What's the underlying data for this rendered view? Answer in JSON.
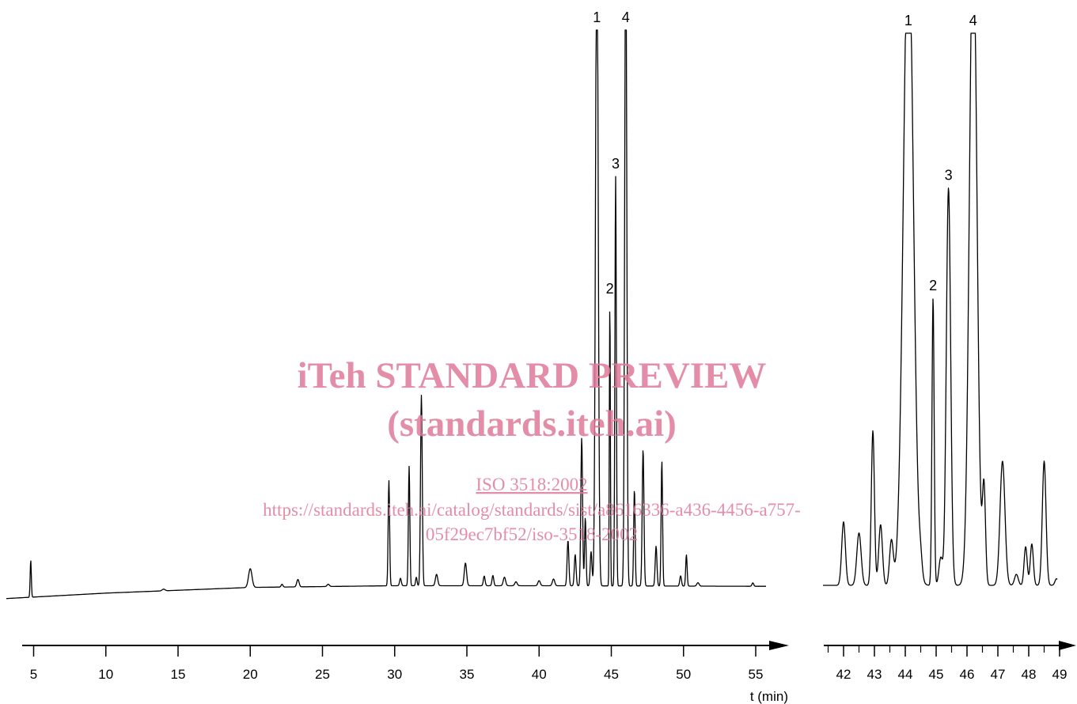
{
  "chart_data": [
    {
      "type": "line",
      "panel": "full-chromatogram",
      "xlabel": "t (min)",
      "ylabel": "",
      "xlim": [
        2.8,
        55.5
      ],
      "xticks": [
        5,
        10,
        15,
        20,
        25,
        30,
        35,
        40,
        45,
        50,
        55
      ],
      "baseline": {
        "x": [
          2.8,
          10,
          20,
          30,
          40,
          55
        ],
        "y": [
          0,
          1.0,
          2.0,
          2.3,
          2.3,
          2.2
        ]
      },
      "peaks": [
        {
          "t": 4.8,
          "h": 6.5,
          "w": 0.04
        },
        {
          "t": 14.0,
          "h": 0.3,
          "w": 0.1
        },
        {
          "t": 20.0,
          "h": 3.3,
          "w": 0.12
        },
        {
          "t": 22.2,
          "h": 0.5,
          "w": 0.06
        },
        {
          "t": 23.3,
          "h": 1.3,
          "w": 0.08
        },
        {
          "t": 25.4,
          "h": 0.4,
          "w": 0.08
        },
        {
          "t": 29.6,
          "h": 18.5,
          "w": 0.05
        },
        {
          "t": 30.4,
          "h": 1.3,
          "w": 0.06
        },
        {
          "t": 31.0,
          "h": 21.0,
          "w": 0.05
        },
        {
          "t": 31.5,
          "h": 1.5,
          "w": 0.05
        },
        {
          "t": 31.85,
          "h": 33.5,
          "w": 0.06
        },
        {
          "t": 32.9,
          "h": 2.0,
          "w": 0.08
        },
        {
          "t": 34.9,
          "h": 4.0,
          "w": 0.08
        },
        {
          "t": 36.2,
          "h": 1.7,
          "w": 0.06
        },
        {
          "t": 36.8,
          "h": 1.8,
          "w": 0.06
        },
        {
          "t": 37.6,
          "h": 1.5,
          "w": 0.08
        },
        {
          "t": 38.4,
          "h": 0.7,
          "w": 0.08
        },
        {
          "t": 40.0,
          "h": 0.9,
          "w": 0.08
        },
        {
          "t": 41.0,
          "h": 1.2,
          "w": 0.08
        },
        {
          "t": 42.0,
          "h": 8.0,
          "w": 0.06
        },
        {
          "t": 42.5,
          "h": 5.5,
          "w": 0.06
        },
        {
          "t": 42.95,
          "h": 26.0,
          "w": 0.06
        },
        {
          "t": 43.2,
          "h": 12.0,
          "w": 0.05
        },
        {
          "t": 43.6,
          "h": 6.0,
          "w": 0.06
        },
        {
          "t": 44.0,
          "h": 120.0,
          "w": 0.09,
          "label": "1"
        },
        {
          "t": 44.9,
          "h": 50.0,
          "w": 0.035,
          "label": "2"
        },
        {
          "t": 45.3,
          "h": 72.0,
          "w": 0.05,
          "label": "3"
        },
        {
          "t": 46.0,
          "h": 120.0,
          "w": 0.07,
          "label": "4"
        },
        {
          "t": 46.6,
          "h": 17.0,
          "w": 0.05
        },
        {
          "t": 47.2,
          "h": 24.0,
          "w": 0.06
        },
        {
          "t": 48.1,
          "h": 7.0,
          "w": 0.06
        },
        {
          "t": 48.5,
          "h": 22.0,
          "w": 0.05
        },
        {
          "t": 49.8,
          "h": 1.8,
          "w": 0.06
        },
        {
          "t": 50.2,
          "h": 5.5,
          "w": 0.05
        },
        {
          "t": 51.0,
          "h": 0.6,
          "w": 0.08
        },
        {
          "t": 54.8,
          "h": 0.6,
          "w": 0.06
        }
      ]
    },
    {
      "type": "line",
      "panel": "expanded-view",
      "xlabel": "",
      "ylabel": "",
      "xlim": [
        41.5,
        49.4
      ],
      "xticks": [
        42,
        43,
        44,
        45,
        46,
        47,
        48,
        49
      ],
      "baseline": {
        "x": [
          41.5,
          49.4
        ],
        "y": [
          0,
          0
        ]
      },
      "peaks": [
        {
          "t": 42.0,
          "h": 11.5,
          "w": 0.06
        },
        {
          "t": 42.5,
          "h": 9.5,
          "w": 0.07
        },
        {
          "t": 42.95,
          "h": 28.0,
          "w": 0.05
        },
        {
          "t": 43.2,
          "h": 11.0,
          "w": 0.06
        },
        {
          "t": 43.55,
          "h": 8.0,
          "w": 0.06
        },
        {
          "t": 44.1,
          "h": 120.0,
          "w": 0.16,
          "label": "1"
        },
        {
          "t": 44.5,
          "h": 2.5,
          "w": 0.05
        },
        {
          "t": 44.9,
          "h": 52.0,
          "w": 0.035,
          "label": "2"
        },
        {
          "t": 45.15,
          "h": 5.0,
          "w": 0.06
        },
        {
          "t": 45.4,
          "h": 72.0,
          "w": 0.07,
          "label": "3"
        },
        {
          "t": 46.2,
          "h": 120.0,
          "w": 0.12,
          "label": "4"
        },
        {
          "t": 46.55,
          "h": 17.5,
          "w": 0.05
        },
        {
          "t": 47.15,
          "h": 22.5,
          "w": 0.08
        },
        {
          "t": 47.6,
          "h": 2.0,
          "w": 0.06
        },
        {
          "t": 47.9,
          "h": 7.0,
          "w": 0.05
        },
        {
          "t": 48.1,
          "h": 7.5,
          "w": 0.05
        },
        {
          "t": 48.5,
          "h": 22.5,
          "w": 0.06
        },
        {
          "t": 48.9,
          "h": 1.2,
          "w": 0.05
        }
      ]
    }
  ],
  "watermark": {
    "title_line1": "iTeh STANDARD PREVIEW",
    "title_line2": "(standards.iteh.ai)",
    "standard_ref": "ISO 3518:2002",
    "url_line1": "https://standards.iteh.ai/catalog/standards/sist/a8616336-a436-4456-a757-",
    "url_line2": "05f29ec7bf52/iso-3518-2002"
  },
  "colors": {
    "trace": "#000000",
    "watermark": "#e07a9a"
  }
}
